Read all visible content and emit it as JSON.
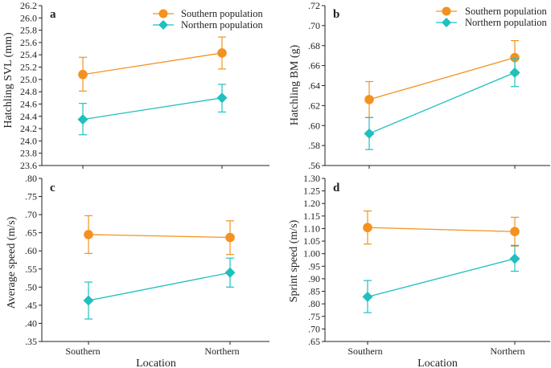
{
  "colors": {
    "southern": "#F39221",
    "northern": "#1FC0BF",
    "axis": "#222222"
  },
  "legend": {
    "southern": "Southern population",
    "northern": "Northern population"
  },
  "xlabel": "Location",
  "chart_data": [
    {
      "panel": "a",
      "type": "line",
      "categories": [
        "Southern",
        "Northern"
      ],
      "ylabel": "Hatchling SVL (mm)",
      "ylim": [
        23.6,
        26.2
      ],
      "yticks": [
        "23.6",
        "23.8",
        "24.0",
        "24.2",
        "24.4",
        "24.6",
        "24.8",
        "25.0",
        "25.2",
        "25.4",
        "25.6",
        "25.8",
        "26.0",
        "26.2"
      ],
      "series": [
        {
          "name": "Southern population",
          "values": [
            25.08,
            25.43
          ],
          "upper": [
            25.36,
            25.69
          ],
          "lower": [
            24.81,
            25.17
          ]
        },
        {
          "name": "Northern population",
          "values": [
            24.35,
            24.7
          ],
          "upper": [
            24.61,
            24.92
          ],
          "lower": [
            24.1,
            24.47
          ]
        }
      ]
    },
    {
      "panel": "b",
      "type": "line",
      "categories": [
        "Southern",
        "Northern"
      ],
      "ylabel": "Hatchling BM (g)",
      "ylim": [
        0.56,
        0.72
      ],
      "yticks": [
        ".56",
        ".58",
        ".60",
        ".62",
        ".64",
        ".66",
        ".68",
        ".70",
        ".72"
      ],
      "series": [
        {
          "name": "Southern population",
          "values": [
            0.626,
            0.668
          ],
          "upper": [
            0.644,
            0.685
          ],
          "lower": [
            0.608,
            0.651
          ]
        },
        {
          "name": "Northern population",
          "values": [
            0.592,
            0.653
          ],
          "upper": [
            0.608,
            0.667
          ],
          "lower": [
            0.576,
            0.639
          ]
        }
      ]
    },
    {
      "panel": "c",
      "type": "line",
      "categories": [
        "Southern",
        "Northern"
      ],
      "ylabel": "Average speed (m/s)",
      "ylim": [
        0.35,
        0.8
      ],
      "yticks": [
        ".35",
        ".40",
        ".45",
        ".50",
        ".55",
        ".60",
        ".65",
        ".70",
        ".75",
        ".80"
      ],
      "series": [
        {
          "name": "Southern population",
          "values": [
            0.645,
            0.637
          ],
          "upper": [
            0.697,
            0.683
          ],
          "lower": [
            0.593,
            0.59
          ]
        },
        {
          "name": "Northern population",
          "values": [
            0.463,
            0.54
          ],
          "upper": [
            0.514,
            0.58
          ],
          "lower": [
            0.412,
            0.5
          ]
        }
      ]
    },
    {
      "panel": "d",
      "type": "line",
      "categories": [
        "Southern",
        "Northern"
      ],
      "ylabel": "Sprint speed (m/s)",
      "ylim": [
        0.65,
        1.3
      ],
      "yticks": [
        ".65",
        ".70",
        ".75",
        ".80",
        ".85",
        ".90",
        ".95",
        "1.00",
        "1.05",
        "1.10",
        "1.15",
        "1.20",
        "1.25",
        "1.30"
      ],
      "series": [
        {
          "name": "Southern population",
          "values": [
            1.104,
            1.088
          ],
          "upper": [
            1.17,
            1.145
          ],
          "lower": [
            1.038,
            1.03
          ]
        },
        {
          "name": "Northern population",
          "values": [
            0.828,
            0.98
          ],
          "upper": [
            0.893,
            1.033
          ],
          "lower": [
            0.765,
            0.93
          ]
        }
      ]
    }
  ]
}
